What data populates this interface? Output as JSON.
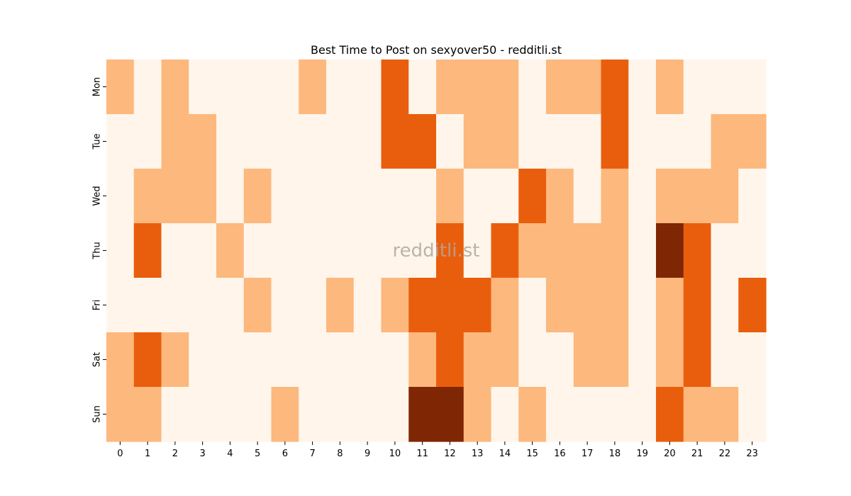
{
  "chart_data": {
    "type": "heatmap",
    "title": "Best Time to Post on sexyover50 - redditli.st",
    "watermark": "redditli.st",
    "x_labels": [
      "0",
      "1",
      "2",
      "3",
      "4",
      "5",
      "6",
      "7",
      "8",
      "9",
      "10",
      "11",
      "12",
      "13",
      "14",
      "15",
      "16",
      "17",
      "18",
      "19",
      "20",
      "21",
      "22",
      "23"
    ],
    "y_labels": [
      "Mon",
      "Tue",
      "Wed",
      "Thu",
      "Fri",
      "Sat",
      "Sun"
    ],
    "levels": [
      [
        1,
        0,
        1,
        0,
        0,
        0,
        0,
        1,
        0,
        0,
        2,
        0,
        1,
        1,
        1,
        0,
        1,
        1,
        2,
        0,
        1,
        0,
        0,
        0
      ],
      [
        0,
        0,
        1,
        1,
        0,
        0,
        0,
        0,
        0,
        0,
        2,
        2,
        0,
        1,
        1,
        0,
        0,
        0,
        2,
        0,
        0,
        0,
        1,
        1
      ],
      [
        0,
        1,
        1,
        1,
        0,
        1,
        0,
        0,
        0,
        0,
        0,
        0,
        1,
        0,
        0,
        2,
        1,
        0,
        1,
        0,
        1,
        1,
        1,
        0
      ],
      [
        0,
        2,
        0,
        0,
        1,
        0,
        0,
        0,
        0,
        0,
        0,
        0,
        2,
        0,
        2,
        1,
        1,
        1,
        1,
        0,
        3,
        2,
        0,
        0
      ],
      [
        0,
        0,
        0,
        0,
        0,
        1,
        0,
        0,
        1,
        0,
        1,
        2,
        2,
        2,
        1,
        0,
        1,
        1,
        1,
        0,
        1,
        2,
        0,
        2
      ],
      [
        1,
        2,
        1,
        0,
        0,
        0,
        0,
        0,
        0,
        0,
        0,
        1,
        2,
        1,
        1,
        0,
        0,
        1,
        1,
        0,
        1,
        2,
        0,
        0
      ],
      [
        1,
        1,
        0,
        0,
        0,
        0,
        1,
        0,
        0,
        0,
        0,
        3,
        3,
        1,
        0,
        1,
        0,
        0,
        0,
        0,
        2,
        1,
        1,
        0
      ]
    ],
    "colors": [
      "#fff5eb",
      "#fdb87d",
      "#e95e0d",
      "#7f2704"
    ],
    "colormap": "Oranges",
    "grid": false,
    "legend": false
  }
}
